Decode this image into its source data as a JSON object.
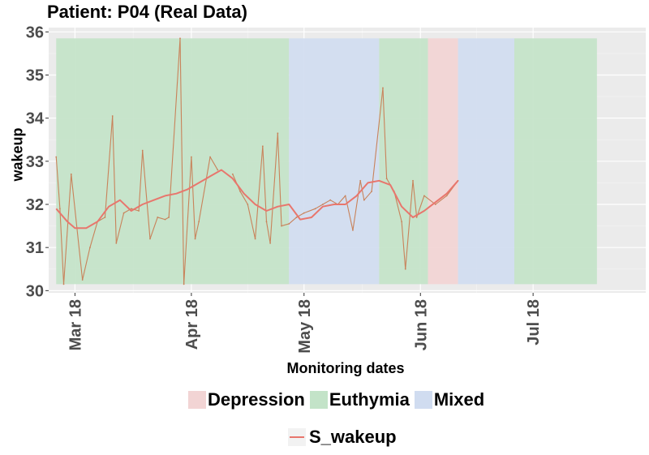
{
  "chart_data": {
    "type": "line",
    "title": "Patient: P04 (Real Data)",
    "xlabel": "Monitoring dates",
    "ylabel": "wakeup",
    "ylim": [
      29.95,
      36.1
    ],
    "xlim": [
      "2018-02-22",
      "2018-07-31"
    ],
    "y_ticks": [
      30,
      31,
      32,
      33,
      34,
      35,
      36
    ],
    "x_ticks": [
      {
        "date": "2018-03-01",
        "label": "Mar 18"
      },
      {
        "date": "2018-04-01",
        "label": "Apr 18"
      },
      {
        "date": "2018-05-01",
        "label": "May 18"
      },
      {
        "date": "2018-06-01",
        "label": "Jun 18"
      },
      {
        "date": "2018-07-01",
        "label": "Jul 18"
      }
    ],
    "grid": true,
    "legend_position": "bottom",
    "band_range": [
      30.15,
      35.85
    ],
    "bands": [
      {
        "state": "Euthymia",
        "start": "2018-02-24",
        "end": "2018-04-27"
      },
      {
        "state": "Mixed",
        "start": "2018-04-27",
        "end": "2018-05-21"
      },
      {
        "state": "Euthymia",
        "start": "2018-05-21",
        "end": "2018-06-03"
      },
      {
        "state": "Depression",
        "start": "2018-06-03",
        "end": "2018-06-11"
      },
      {
        "state": "Mixed",
        "start": "2018-06-11",
        "end": "2018-06-26"
      },
      {
        "state": "Euthymia",
        "start": "2018-06-26",
        "end": "2018-07-18"
      }
    ],
    "state_colors": {
      "Depression": "#f2d4d4",
      "Euthymia": "#c3e3c8",
      "Mixed": "#d0dcf0"
    },
    "raw_series": {
      "color": "#c8825a",
      "points": [
        [
          "2018-02-24",
          33.1
        ],
        [
          "2018-02-25",
          31.9
        ],
        [
          "2018-02-26",
          30.15
        ],
        [
          "2018-02-28",
          32.7
        ],
        [
          "2018-03-03",
          30.25
        ],
        [
          "2018-03-05",
          31.0
        ],
        [
          "2018-03-07",
          31.6
        ],
        [
          "2018-03-09",
          31.7
        ],
        [
          "2018-03-11",
          34.05
        ],
        [
          "2018-03-12",
          31.1
        ],
        [
          "2018-03-14",
          31.8
        ],
        [
          "2018-03-16",
          31.9
        ],
        [
          "2018-03-18",
          31.85
        ],
        [
          "2018-03-19",
          33.25
        ],
        [
          "2018-03-21",
          31.2
        ],
        [
          "2018-03-23",
          31.7
        ],
        [
          "2018-03-25",
          31.65
        ],
        [
          "2018-03-26",
          31.7
        ],
        [
          "2018-03-29",
          35.85
        ],
        [
          "2018-03-30",
          30.15
        ],
        [
          "2018-04-01",
          33.1
        ],
        [
          "2018-04-02",
          31.2
        ],
        [
          "2018-04-03",
          31.6
        ],
        [
          "2018-04-06",
          33.1
        ],
        [
          "2018-04-08",
          32.8
        ],
        [
          "2018-04-12",
          32.7
        ],
        [
          "2018-04-14",
          32.3
        ],
        [
          "2018-04-16",
          32.0
        ],
        [
          "2018-04-18",
          31.2
        ],
        [
          "2018-04-20",
          33.35
        ],
        [
          "2018-04-21",
          31.6
        ],
        [
          "2018-04-22",
          31.1
        ],
        [
          "2018-04-24",
          33.65
        ],
        [
          "2018-04-25",
          31.5
        ],
        [
          "2018-04-27",
          31.55
        ],
        [
          "2018-04-29",
          31.7
        ],
        [
          "2018-05-01",
          31.8
        ],
        [
          "2018-05-04",
          31.9
        ],
        [
          "2018-05-06",
          32.0
        ],
        [
          "2018-05-08",
          32.1
        ],
        [
          "2018-05-10",
          32.0
        ],
        [
          "2018-05-12",
          32.2
        ],
        [
          "2018-05-14",
          31.4
        ],
        [
          "2018-05-16",
          32.55
        ],
        [
          "2018-05-17",
          32.1
        ],
        [
          "2018-05-19",
          32.3
        ],
        [
          "2018-05-22",
          34.7
        ],
        [
          "2018-05-23",
          32.6
        ],
        [
          "2018-05-25",
          32.3
        ],
        [
          "2018-05-27",
          31.6
        ],
        [
          "2018-05-28",
          30.5
        ],
        [
          "2018-05-30",
          32.55
        ],
        [
          "2018-05-31",
          31.7
        ],
        [
          "2018-06-02",
          32.2
        ],
        [
          "2018-06-05",
          32.0
        ],
        [
          "2018-06-08",
          32.2
        ],
        [
          "2018-06-11",
          32.55
        ]
      ]
    },
    "series": [
      {
        "name": "S_wakeup",
        "color": "#e8766d",
        "x": [
          "2018-02-24",
          "2018-02-27",
          "2018-03-01",
          "2018-03-04",
          "2018-03-07",
          "2018-03-10",
          "2018-03-13",
          "2018-03-16",
          "2018-03-19",
          "2018-03-22",
          "2018-03-25",
          "2018-03-28",
          "2018-03-31",
          "2018-04-03",
          "2018-04-06",
          "2018-04-09",
          "2018-04-12",
          "2018-04-15",
          "2018-04-18",
          "2018-04-21",
          "2018-04-24",
          "2018-04-27",
          "2018-04-30",
          "2018-05-03",
          "2018-05-06",
          "2018-05-09",
          "2018-05-12",
          "2018-05-15",
          "2018-05-18",
          "2018-05-21",
          "2018-05-24",
          "2018-05-27",
          "2018-05-30",
          "2018-06-02",
          "2018-06-05",
          "2018-06-08",
          "2018-06-11"
        ],
        "values": [
          31.9,
          31.6,
          31.45,
          31.45,
          31.6,
          31.95,
          32.1,
          31.85,
          32.0,
          32.1,
          32.2,
          32.25,
          32.35,
          32.5,
          32.65,
          32.8,
          32.6,
          32.25,
          32.0,
          31.85,
          31.95,
          32.0,
          31.65,
          31.7,
          31.95,
          32.0,
          32.0,
          32.2,
          32.5,
          32.55,
          32.45,
          31.95,
          31.7,
          31.85,
          32.05,
          32.25,
          32.55
        ]
      }
    ]
  },
  "legend": {
    "fill_items": [
      "Depression",
      "Euthymia",
      "Mixed"
    ],
    "line_item": "S_wakeup"
  }
}
